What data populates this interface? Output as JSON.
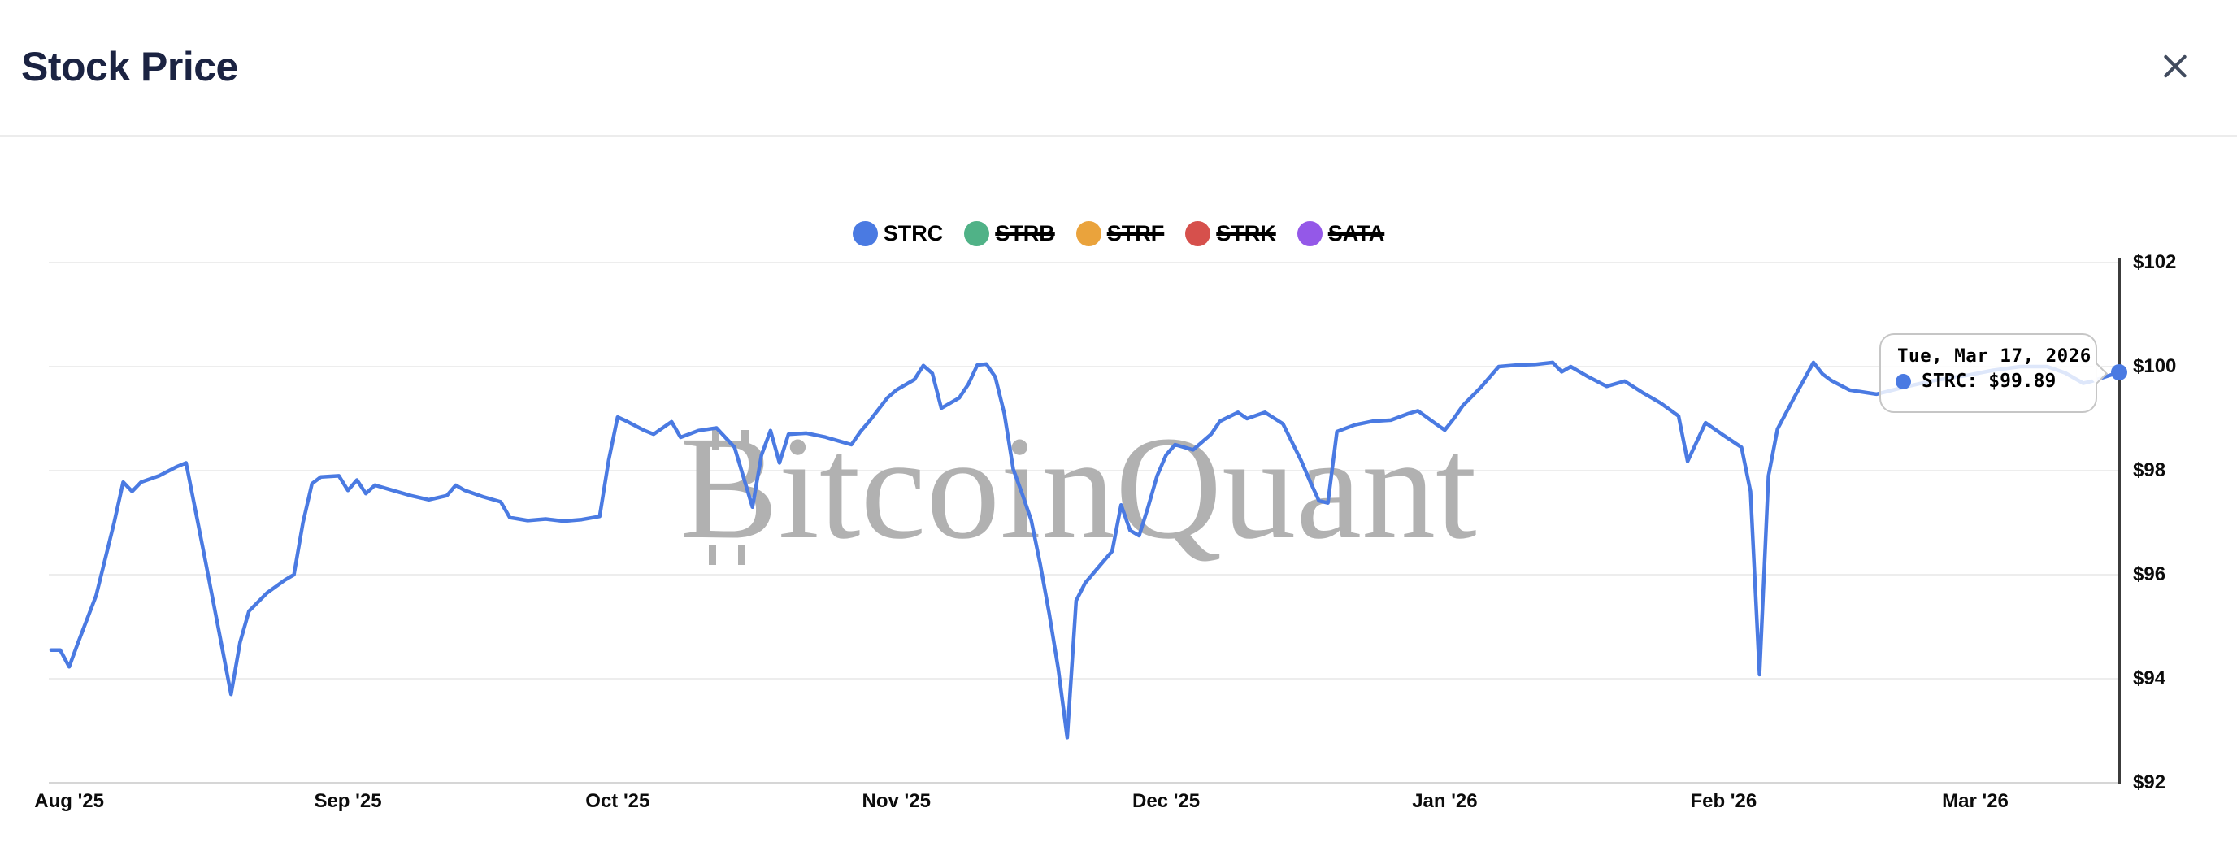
{
  "header": {
    "title": "Stock Price"
  },
  "legend": {
    "items": [
      {
        "label": "STRC",
        "color": "#4A7AE2",
        "active": true
      },
      {
        "label": "STRB",
        "color": "#50B287",
        "active": false
      },
      {
        "label": "STRF",
        "color": "#EAA33C",
        "active": false
      },
      {
        "label": "STRK",
        "color": "#D6504C",
        "active": false
      },
      {
        "label": "SATA",
        "color": "#9458E8",
        "active": false
      }
    ]
  },
  "watermark": {
    "text": "BitcoinQuant"
  },
  "tooltip": {
    "date": "Tue, Mar 17, 2026",
    "series": "STRC",
    "series_label": "STRC:",
    "value": "$99.89",
    "color": "#4A7AE2"
  },
  "colors": {
    "accent_blue": "#4A7AE2",
    "axis_line": "#3c3c3c",
    "gridline": "#ededed",
    "title_text": "#1b2342",
    "watermark_gray": "#b1b1b1"
  },
  "chart_data": {
    "type": "line",
    "title": "Stock Price",
    "xlabel": "",
    "ylabel": "",
    "grid": true,
    "legend_position": "top",
    "ylim": [
      92,
      102
    ],
    "ytick_interval": 2,
    "xlim": [
      "2025-07-30",
      "2026-03-17"
    ],
    "y_ticks": [
      {
        "label": "$102",
        "value": 102
      },
      {
        "label": "$100",
        "value": 100
      },
      {
        "label": "$98",
        "value": 98
      },
      {
        "label": "$96",
        "value": 96
      },
      {
        "label": "$94",
        "value": 94
      },
      {
        "label": "$92",
        "value": 92
      }
    ],
    "x_ticks": [
      {
        "label": "Aug '25",
        "date": "2025-08-01"
      },
      {
        "label": "Sep '25",
        "date": "2025-09-01"
      },
      {
        "label": "Oct '25",
        "date": "2025-10-01"
      },
      {
        "label": "Nov '25",
        "date": "2025-11-01"
      },
      {
        "label": "Dec '25",
        "date": "2025-12-01"
      },
      {
        "label": "Jan '26",
        "date": "2026-01-01"
      },
      {
        "label": "Feb '26",
        "date": "2026-02-01"
      },
      {
        "label": "Mar '26",
        "date": "2026-03-01"
      }
    ],
    "series": [
      {
        "name": "STRC",
        "color": "#4A7AE2",
        "visible": true,
        "last_point": {
          "date": "2026-03-17",
          "price": 99.89
        },
        "points": [
          [
            "2025-07-30",
            94.55
          ],
          [
            "2025-07-31",
            94.55
          ],
          [
            "2025-08-01",
            94.23
          ],
          [
            "2025-08-02",
            94.7
          ],
          [
            "2025-08-04",
            95.6
          ],
          [
            "2025-08-06",
            97.0
          ],
          [
            "2025-08-07",
            97.78
          ],
          [
            "2025-08-08",
            97.6
          ],
          [
            "2025-08-09",
            97.78
          ],
          [
            "2025-08-11",
            97.9
          ],
          [
            "2025-08-13",
            98.08
          ],
          [
            "2025-08-14",
            98.15
          ],
          [
            "2025-08-16",
            96.4
          ],
          [
            "2025-08-18",
            94.6
          ],
          [
            "2025-08-19",
            93.7
          ],
          [
            "2025-08-20",
            94.7
          ],
          [
            "2025-08-21",
            95.3
          ],
          [
            "2025-08-23",
            95.65
          ],
          [
            "2025-08-25",
            95.9
          ],
          [
            "2025-08-26",
            96.0
          ],
          [
            "2025-08-27",
            97.0
          ],
          [
            "2025-08-28",
            97.75
          ],
          [
            "2025-08-29",
            97.88
          ],
          [
            "2025-08-31",
            97.9
          ],
          [
            "2025-09-01",
            97.62
          ],
          [
            "2025-09-02",
            97.82
          ],
          [
            "2025-09-03",
            97.56
          ],
          [
            "2025-09-04",
            97.72
          ],
          [
            "2025-09-06",
            97.62
          ],
          [
            "2025-09-08",
            97.52
          ],
          [
            "2025-09-10",
            97.44
          ],
          [
            "2025-09-12",
            97.52
          ],
          [
            "2025-09-13",
            97.72
          ],
          [
            "2025-09-14",
            97.62
          ],
          [
            "2025-09-16",
            97.5
          ],
          [
            "2025-09-18",
            97.4
          ],
          [
            "2025-09-19",
            97.1
          ],
          [
            "2025-09-21",
            97.04
          ],
          [
            "2025-09-23",
            97.07
          ],
          [
            "2025-09-25",
            97.03
          ],
          [
            "2025-09-27",
            97.06
          ],
          [
            "2025-09-29",
            97.12
          ],
          [
            "2025-09-30",
            98.2
          ],
          [
            "2025-10-01",
            99.03
          ],
          [
            "2025-10-02",
            98.95
          ],
          [
            "2025-10-04",
            98.77
          ],
          [
            "2025-10-05",
            98.7
          ],
          [
            "2025-10-07",
            98.94
          ],
          [
            "2025-10-08",
            98.64
          ],
          [
            "2025-10-10",
            98.77
          ],
          [
            "2025-10-12",
            98.82
          ],
          [
            "2025-10-14",
            98.45
          ],
          [
            "2025-10-16",
            97.3
          ],
          [
            "2025-10-17",
            98.3
          ],
          [
            "2025-10-18",
            98.77
          ],
          [
            "2025-10-19",
            98.15
          ],
          [
            "2025-10-20",
            98.7
          ],
          [
            "2025-10-22",
            98.72
          ],
          [
            "2025-10-24",
            98.65
          ],
          [
            "2025-10-26",
            98.55
          ],
          [
            "2025-10-27",
            98.5
          ],
          [
            "2025-10-28",
            98.75
          ],
          [
            "2025-10-29",
            98.95
          ],
          [
            "2025-10-31",
            99.4
          ],
          [
            "2025-11-01",
            99.55
          ],
          [
            "2025-11-03",
            99.75
          ],
          [
            "2025-11-04",
            100.02
          ],
          [
            "2025-11-05",
            99.87
          ],
          [
            "2025-11-06",
            99.2
          ],
          [
            "2025-11-08",
            99.4
          ],
          [
            "2025-11-09",
            99.66
          ],
          [
            "2025-11-10",
            100.03
          ],
          [
            "2025-11-11",
            100.05
          ],
          [
            "2025-11-12",
            99.8
          ],
          [
            "2025-11-13",
            99.1
          ],
          [
            "2025-11-14",
            98.03
          ],
          [
            "2025-11-15",
            97.55
          ],
          [
            "2025-11-16",
            97.05
          ],
          [
            "2025-11-17",
            96.2
          ],
          [
            "2025-11-18",
            95.25
          ],
          [
            "2025-11-19",
            94.2
          ],
          [
            "2025-11-20",
            92.87
          ],
          [
            "2025-11-21",
            95.5
          ],
          [
            "2025-11-22",
            95.84
          ],
          [
            "2025-11-24",
            96.25
          ],
          [
            "2025-11-25",
            96.45
          ],
          [
            "2025-11-26",
            97.34
          ],
          [
            "2025-11-27",
            96.85
          ],
          [
            "2025-11-28",
            96.75
          ],
          [
            "2025-11-29",
            97.3
          ],
          [
            "2025-11-30",
            97.9
          ],
          [
            "2025-12-01",
            98.3
          ],
          [
            "2025-12-02",
            98.5
          ],
          [
            "2025-12-03",
            98.45
          ],
          [
            "2025-12-04",
            98.4
          ],
          [
            "2025-12-06",
            98.7
          ],
          [
            "2025-12-07",
            98.95
          ],
          [
            "2025-12-09",
            99.12
          ],
          [
            "2025-12-10",
            99.0
          ],
          [
            "2025-12-12",
            99.12
          ],
          [
            "2025-12-14",
            98.9
          ],
          [
            "2025-12-16",
            98.2
          ],
          [
            "2025-12-17",
            97.8
          ],
          [
            "2025-12-18",
            97.42
          ],
          [
            "2025-12-19",
            97.38
          ],
          [
            "2025-12-20",
            98.75
          ],
          [
            "2025-12-22",
            98.88
          ],
          [
            "2025-12-24",
            98.95
          ],
          [
            "2025-12-26",
            98.97
          ],
          [
            "2025-12-28",
            99.1
          ],
          [
            "2025-12-29",
            99.15
          ],
          [
            "2025-12-31",
            98.9
          ],
          [
            "2026-01-01",
            98.78
          ],
          [
            "2026-01-02",
            99.0
          ],
          [
            "2026-01-03",
            99.25
          ],
          [
            "2026-01-05",
            99.6
          ],
          [
            "2026-01-07",
            100.0
          ],
          [
            "2026-01-09",
            100.03
          ],
          [
            "2026-01-11",
            100.04
          ],
          [
            "2026-01-13",
            100.08
          ],
          [
            "2026-01-14",
            99.9
          ],
          [
            "2026-01-15",
            100.0
          ],
          [
            "2026-01-17",
            99.8
          ],
          [
            "2026-01-19",
            99.62
          ],
          [
            "2026-01-21",
            99.72
          ],
          [
            "2026-01-23",
            99.5
          ],
          [
            "2026-01-25",
            99.3
          ],
          [
            "2026-01-27",
            99.05
          ],
          [
            "2026-01-28",
            98.18
          ],
          [
            "2026-01-30",
            98.92
          ],
          [
            "2026-02-01",
            98.68
          ],
          [
            "2026-02-03",
            98.45
          ],
          [
            "2026-02-04",
            97.6
          ],
          [
            "2026-02-05",
            94.08
          ],
          [
            "2026-02-06",
            97.9
          ],
          [
            "2026-02-07",
            98.8
          ],
          [
            "2026-02-09",
            99.45
          ],
          [
            "2026-02-11",
            100.08
          ],
          [
            "2026-02-12",
            99.86
          ],
          [
            "2026-02-13",
            99.73
          ],
          [
            "2026-02-15",
            99.55
          ],
          [
            "2026-02-18",
            99.47
          ],
          [
            "2026-02-21",
            99.6
          ],
          [
            "2026-02-24",
            99.72
          ],
          [
            "2026-02-28",
            99.83
          ],
          [
            "2026-03-03",
            99.93
          ],
          [
            "2026-03-06",
            100.0
          ],
          [
            "2026-03-09",
            100.0
          ],
          [
            "2026-03-11",
            99.88
          ],
          [
            "2026-03-13",
            99.68
          ],
          [
            "2026-03-14",
            99.72
          ],
          [
            "2026-03-17",
            99.89
          ]
        ]
      }
    ]
  }
}
